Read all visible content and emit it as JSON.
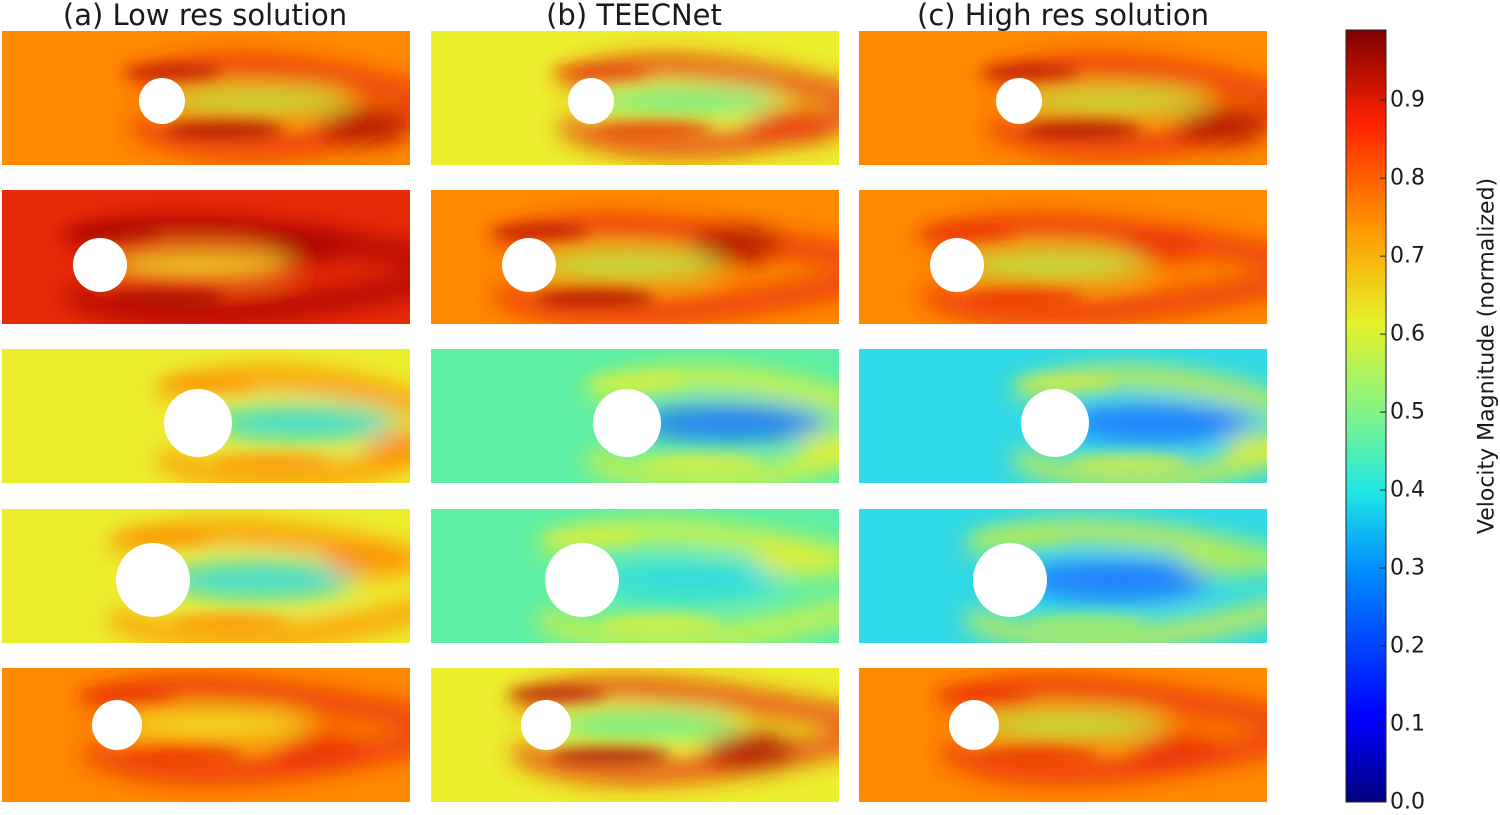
{
  "columns": [
    {
      "title": "(a) Low res solution"
    },
    {
      "title": "(b) TEECNet"
    },
    {
      "title": "(c) High res solution"
    }
  ],
  "colorbar": {
    "label": "Velocity Magnitude (normalized)",
    "ticks": [
      "0.0",
      "0.1",
      "0.2",
      "0.3",
      "0.4",
      "0.5",
      "0.6",
      "0.7",
      "0.8",
      "0.9"
    ],
    "range": [
      0.0,
      0.99
    ],
    "colormap": "jet"
  },
  "rows": [
    {
      "name": "case-1",
      "cylinder_size": "small",
      "field_level": "high"
    },
    {
      "name": "case-2",
      "cylinder_size": "small",
      "field_level": "very-high"
    },
    {
      "name": "case-3",
      "cylinder_size": "large",
      "field_level": "medium"
    },
    {
      "name": "case-4",
      "cylinder_size": "large",
      "field_level": "medium-low"
    },
    {
      "name": "case-5",
      "cylinder_size": "small",
      "field_level": "high"
    }
  ],
  "colors": {
    "dark_red": "#a50000",
    "red": "#e82a08",
    "orange": "#ff8a00",
    "yellow": "#ecef2e",
    "light_green": "#b6f04f",
    "cyan_green": "#5cefa6",
    "cyan": "#2fd9e8",
    "blue": "#1f6fff",
    "dark_blue": "#00007f"
  }
}
